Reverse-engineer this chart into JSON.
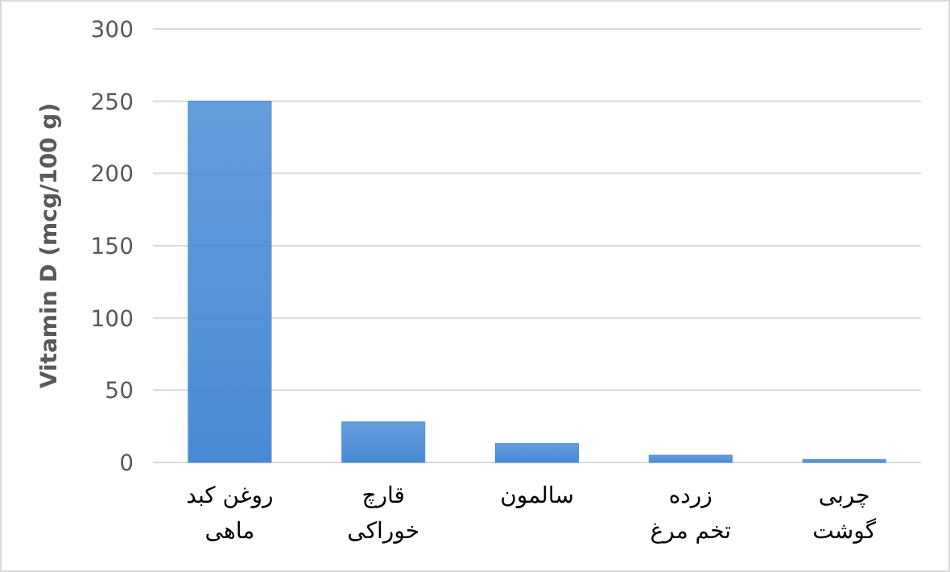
{
  "chart_data": {
    "type": "bar",
    "ylabel": "Vitamin D (mcg/100 g)",
    "categories": [
      "روغن کبد\nماهی",
      "قارچ\nخوراکی",
      "سالمون",
      "زرده\nتخم مرغ",
      "چربی\nگوشت"
    ],
    "values": [
      250,
      28,
      13,
      5,
      2
    ],
    "color": "#4a8bd6",
    "ylim": [
      0,
      300
    ],
    "yticks": [
      0,
      50,
      100,
      150,
      200,
      250,
      300
    ],
    "grid": "y"
  }
}
